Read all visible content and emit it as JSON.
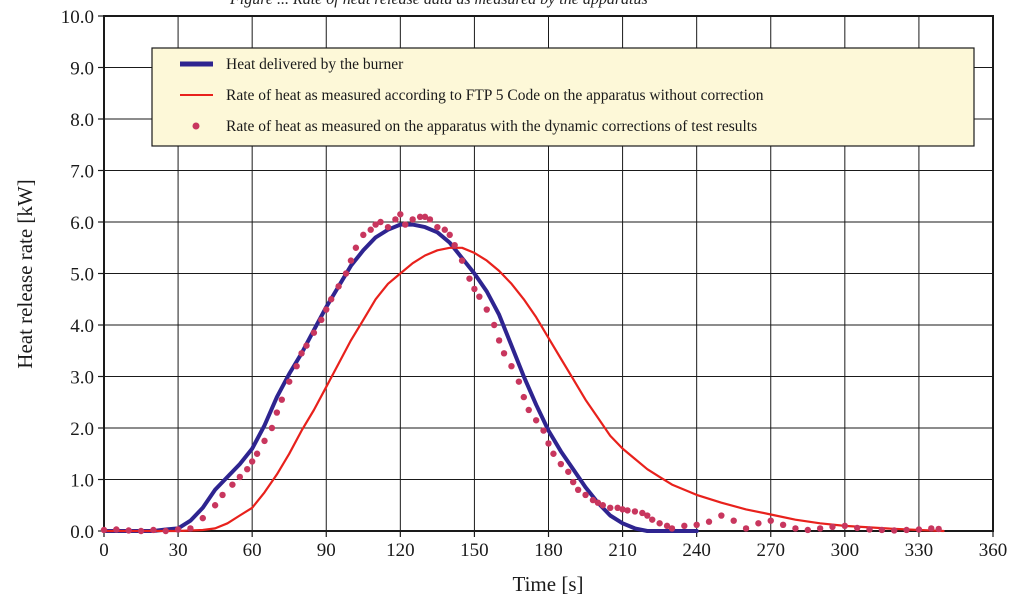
{
  "chart_data": {
    "type": "line",
    "title": "",
    "partial_caption": "Figure ... Rate of heat release data as measured by the apparatus",
    "xlabel": "Time [s]",
    "ylabel": "Heat release rate [kW]",
    "xlim": [
      0,
      360
    ],
    "ylim": [
      0,
      10
    ],
    "x_ticks": [
      "0",
      "30",
      "60",
      "90",
      "120",
      "150",
      "180",
      "210",
      "240",
      "270",
      "300",
      "330",
      "360"
    ],
    "y_ticks": [
      "0.0",
      "1.0",
      "2.0",
      "3.0",
      "4.0",
      "5.0",
      "6.0",
      "7.0",
      "8.0",
      "9.0",
      "10.0"
    ],
    "grid": true,
    "legend_position": "top-center",
    "series": [
      {
        "name": "Heat delivered by the burner",
        "style": "line-thick",
        "color": "#2e2490",
        "x": [
          0,
          20,
          25,
          30,
          35,
          40,
          45,
          50,
          55,
          60,
          65,
          70,
          75,
          80,
          85,
          90,
          95,
          100,
          105,
          110,
          115,
          120,
          125,
          130,
          135,
          140,
          145,
          150,
          155,
          160,
          165,
          170,
          175,
          180,
          185,
          190,
          195,
          200,
          205,
          210,
          215,
          220,
          225,
          230,
          240
        ],
        "y": [
          0.0,
          0.0,
          0.03,
          0.05,
          0.2,
          0.45,
          0.8,
          1.05,
          1.3,
          1.6,
          2.05,
          2.6,
          3.05,
          3.45,
          3.9,
          4.35,
          4.75,
          5.15,
          5.45,
          5.7,
          5.85,
          5.95,
          5.95,
          5.9,
          5.8,
          5.6,
          5.3,
          5.0,
          4.65,
          4.2,
          3.6,
          3.0,
          2.45,
          1.95,
          1.55,
          1.2,
          0.85,
          0.55,
          0.3,
          0.15,
          0.05,
          0.0,
          0.0,
          0.0,
          0.0
        ]
      },
      {
        "name": "Rate of heat as measured according to FTP 5 Code on the apparatus without correction",
        "style": "line",
        "color": "#e8211c",
        "x": [
          0,
          30,
          40,
          45,
          50,
          55,
          60,
          65,
          70,
          75,
          80,
          85,
          90,
          95,
          100,
          105,
          110,
          115,
          120,
          125,
          130,
          135,
          140,
          145,
          150,
          155,
          160,
          165,
          170,
          175,
          180,
          185,
          190,
          195,
          200,
          205,
          210,
          215,
          220,
          225,
          230,
          240,
          250,
          260,
          270,
          280,
          290,
          300,
          310,
          320,
          330,
          340
        ],
        "y": [
          0.0,
          0.0,
          0.02,
          0.05,
          0.15,
          0.3,
          0.45,
          0.75,
          1.1,
          1.5,
          1.95,
          2.35,
          2.8,
          3.25,
          3.7,
          4.1,
          4.5,
          4.8,
          5.0,
          5.2,
          5.35,
          5.45,
          5.5,
          5.5,
          5.4,
          5.25,
          5.05,
          4.8,
          4.5,
          4.15,
          3.75,
          3.35,
          2.95,
          2.55,
          2.2,
          1.85,
          1.6,
          1.4,
          1.2,
          1.05,
          0.9,
          0.7,
          0.55,
          0.42,
          0.32,
          0.22,
          0.15,
          0.1,
          0.07,
          0.04,
          0.02,
          0.0
        ]
      },
      {
        "name": "Rate of heat as measured on the apparatus with the dynamic corrections of test results",
        "style": "dots",
        "color": "#c8365e",
        "x": [
          0,
          5,
          10,
          15,
          20,
          25,
          30,
          35,
          40,
          45,
          48,
          52,
          55,
          58,
          60,
          62,
          65,
          68,
          70,
          72,
          75,
          78,
          80,
          82,
          85,
          88,
          90,
          92,
          95,
          98,
          100,
          102,
          105,
          108,
          110,
          112,
          115,
          118,
          120,
          122,
          125,
          128,
          130,
          132,
          135,
          138,
          140,
          142,
          145,
          148,
          150,
          152,
          155,
          158,
          160,
          162,
          165,
          168,
          170,
          172,
          175,
          178,
          180,
          182,
          185,
          188,
          190,
          192,
          195,
          198,
          200,
          202,
          205,
          208,
          210,
          212,
          215,
          218,
          220,
          222,
          225,
          228,
          230,
          235,
          240,
          245,
          250,
          255,
          260,
          265,
          270,
          275,
          280,
          285,
          290,
          295,
          300,
          305,
          310,
          315,
          320,
          325,
          330,
          335,
          338
        ],
        "y": [
          0.02,
          0.03,
          0.01,
          0.0,
          0.02,
          0.0,
          0.03,
          0.05,
          0.25,
          0.5,
          0.7,
          0.9,
          1.05,
          1.2,
          1.35,
          1.5,
          1.75,
          2.0,
          2.3,
          2.55,
          2.9,
          3.2,
          3.45,
          3.6,
          3.85,
          4.1,
          4.3,
          4.5,
          4.75,
          5.0,
          5.25,
          5.5,
          5.75,
          5.85,
          5.95,
          6.0,
          5.9,
          6.05,
          6.15,
          5.95,
          6.05,
          6.1,
          6.1,
          6.05,
          5.9,
          5.85,
          5.75,
          5.55,
          5.25,
          4.9,
          4.7,
          4.55,
          4.3,
          4.0,
          3.7,
          3.45,
          3.2,
          2.9,
          2.6,
          2.35,
          2.15,
          1.95,
          1.7,
          1.5,
          1.3,
          1.15,
          0.95,
          0.8,
          0.7,
          0.6,
          0.55,
          0.5,
          0.45,
          0.45,
          0.42,
          0.4,
          0.38,
          0.35,
          0.3,
          0.22,
          0.15,
          0.1,
          0.05,
          0.1,
          0.12,
          0.18,
          0.3,
          0.2,
          0.05,
          0.15,
          0.2,
          0.12,
          0.05,
          0.02,
          0.05,
          0.08,
          0.1,
          0.06,
          0.03,
          0.02,
          0.01,
          0.02,
          0.03,
          0.05,
          0.04
        ]
      }
    ]
  }
}
